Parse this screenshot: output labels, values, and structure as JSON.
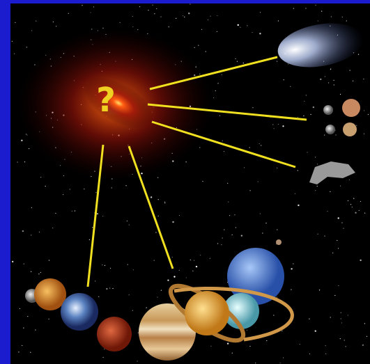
{
  "label": "?"
}
